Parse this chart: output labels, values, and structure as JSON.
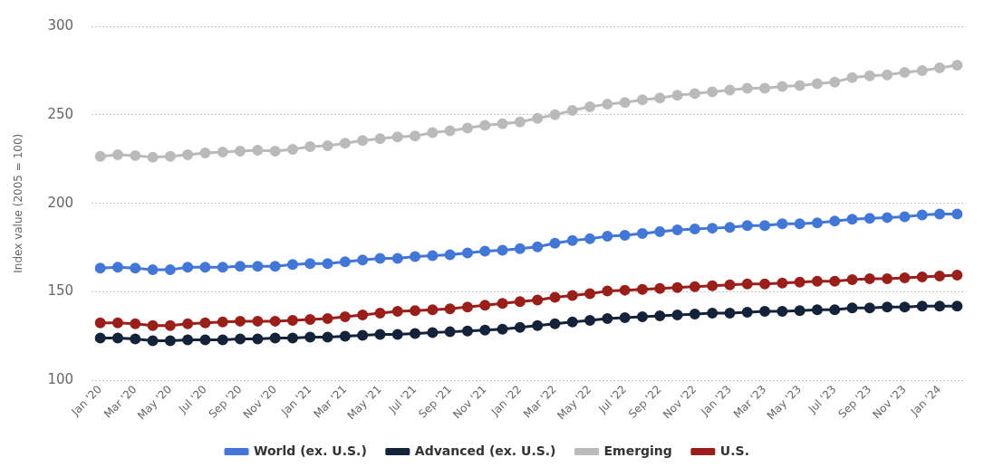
{
  "chart_data": {
    "type": "line",
    "ylabel": "Index value (2005 = 100)",
    "categories": [
      "Jan '20",
      null,
      "Mar '20",
      null,
      "May '20",
      null,
      "Jul '20",
      null,
      "Sep '20",
      null,
      "Nov '20",
      null,
      "Jan '21",
      null,
      "Mar '21",
      null,
      "May '21",
      null,
      "Jul '21",
      null,
      "Sep '21",
      null,
      "Nov '21",
      null,
      "Jan '22",
      null,
      "Mar '22",
      null,
      "May '22",
      null,
      "Jul '22",
      null,
      "Sep '22",
      null,
      "Nov '22",
      null,
      "Jan '23",
      null,
      "Mar '23",
      null,
      "May '23",
      null,
      "Jul '23",
      null,
      "Sep '23",
      null,
      "Nov '23",
      null,
      "Jan '24",
      null
    ],
    "series": [
      {
        "name": "World (ex. U.S.)",
        "color": "#4277d8",
        "values": [
          163.5,
          164,
          163.5,
          162.5,
          162.5,
          164,
          164,
          164,
          164.5,
          164.5,
          164.5,
          165.5,
          166,
          166,
          167,
          168,
          169,
          169,
          170,
          170.5,
          171,
          172,
          173,
          173.5,
          174.5,
          175.5,
          177.5,
          179,
          180,
          181.5,
          182,
          183,
          184,
          185,
          185.5,
          186,
          186.5,
          187.5,
          187.5,
          188.5,
          188.5,
          189,
          190,
          191,
          191.5,
          192,
          192.5,
          193.5,
          194,
          194
        ]
      },
      {
        "name": "Advanced (ex. U.S.)",
        "color": "#14233a",
        "values": [
          124,
          124,
          123.5,
          122.5,
          122.5,
          123,
          123,
          123,
          123.5,
          123.5,
          124,
          124,
          124.5,
          124.5,
          125,
          125.5,
          126,
          126,
          126.5,
          127,
          127.5,
          128,
          128.5,
          129,
          130,
          131,
          132,
          133,
          134,
          135,
          135.5,
          136,
          136.5,
          137,
          137.5,
          138,
          138,
          138.5,
          139,
          139,
          139.5,
          140,
          140,
          141,
          141,
          141.5,
          141.5,
          142,
          142,
          142
        ]
      },
      {
        "name": "Emerging",
        "color": "#bababa",
        "values": [
          226.5,
          227.5,
          227,
          226,
          226.5,
          227.5,
          228.5,
          229,
          229.5,
          230,
          229.5,
          230.5,
          232,
          232.5,
          234,
          235.5,
          236.5,
          237.5,
          238,
          240,
          241,
          242.5,
          244,
          245,
          246,
          248,
          250,
          252.5,
          254.5,
          256,
          257,
          258.5,
          259.5,
          261,
          262,
          263,
          264,
          265,
          265,
          266,
          266.5,
          267.5,
          268.5,
          271,
          272,
          272.5,
          274,
          275,
          276.5,
          278
        ]
      },
      {
        "name": "U.S.",
        "color": "#9a1f1a",
        "values": [
          132.5,
          132.5,
          132,
          131,
          131,
          132,
          132.5,
          133,
          133.5,
          133.5,
          133.5,
          134,
          134.5,
          135,
          136,
          137,
          138,
          139,
          139.5,
          140,
          140.5,
          141.5,
          142.5,
          143.5,
          144.5,
          145.5,
          147,
          148,
          149,
          150.5,
          151,
          151.5,
          152,
          152.5,
          153,
          153.5,
          154,
          154.5,
          154.5,
          155,
          155.5,
          156,
          156,
          157,
          157.5,
          157.5,
          158,
          158.5,
          159,
          159.5
        ]
      }
    ],
    "ylim": [
      100,
      300
    ],
    "yticks": [
      100,
      150,
      200,
      250,
      300
    ],
    "grid": "y",
    "legend": "bottom",
    "marker": "circle",
    "line_style": "solid"
  }
}
